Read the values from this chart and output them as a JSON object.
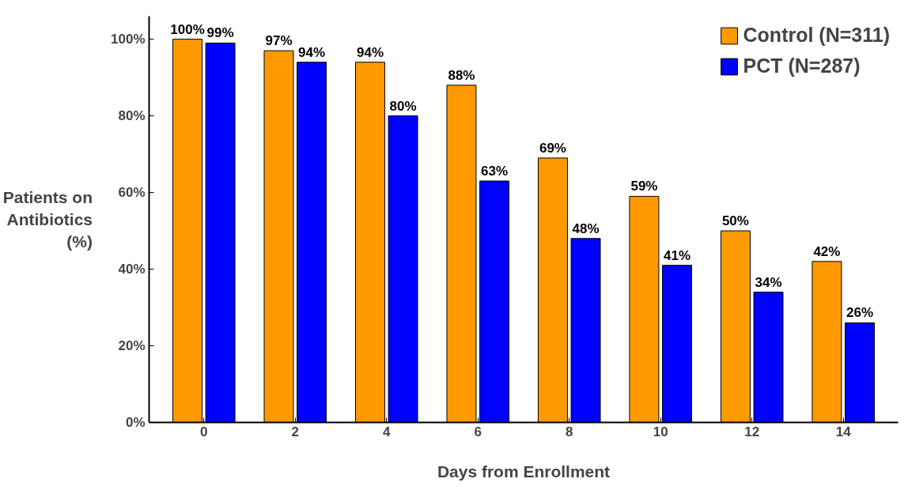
{
  "chart_data": {
    "type": "bar",
    "xlabel": "Days from Enrollment",
    "ylabel": "Patients on\nAntibiotics\n(%)",
    "categories": [
      "0",
      "2",
      "4",
      "6",
      "8",
      "10",
      "12",
      "14"
    ],
    "series": [
      {
        "name": "Control (N=311)",
        "color": "#ff9900",
        "values": [
          100,
          97,
          94,
          88,
          69,
          59,
          50,
          42
        ],
        "value_labels": [
          "100%",
          "97%",
          "94%",
          "88%",
          "69%",
          "59%",
          "50%",
          "42%"
        ]
      },
      {
        "name": "PCT (N=287)",
        "color": "#0000ff",
        "values": [
          99,
          94,
          80,
          63,
          48,
          41,
          34,
          26
        ],
        "value_labels": [
          "99%",
          "94%",
          "80%",
          "63%",
          "48%",
          "41%",
          "34%",
          "26%"
        ]
      }
    ],
    "ylim": [
      0,
      106
    ],
    "yticks": [
      {
        "value": 0,
        "label": "0%"
      },
      {
        "value": 20,
        "label": "20%"
      },
      {
        "value": 40,
        "label": "40%"
      },
      {
        "value": 60,
        "label": "60%"
      },
      {
        "value": 80,
        "label": "80%"
      },
      {
        "value": 100,
        "label": "100%"
      }
    ],
    "grid": false,
    "legend": "top right"
  }
}
